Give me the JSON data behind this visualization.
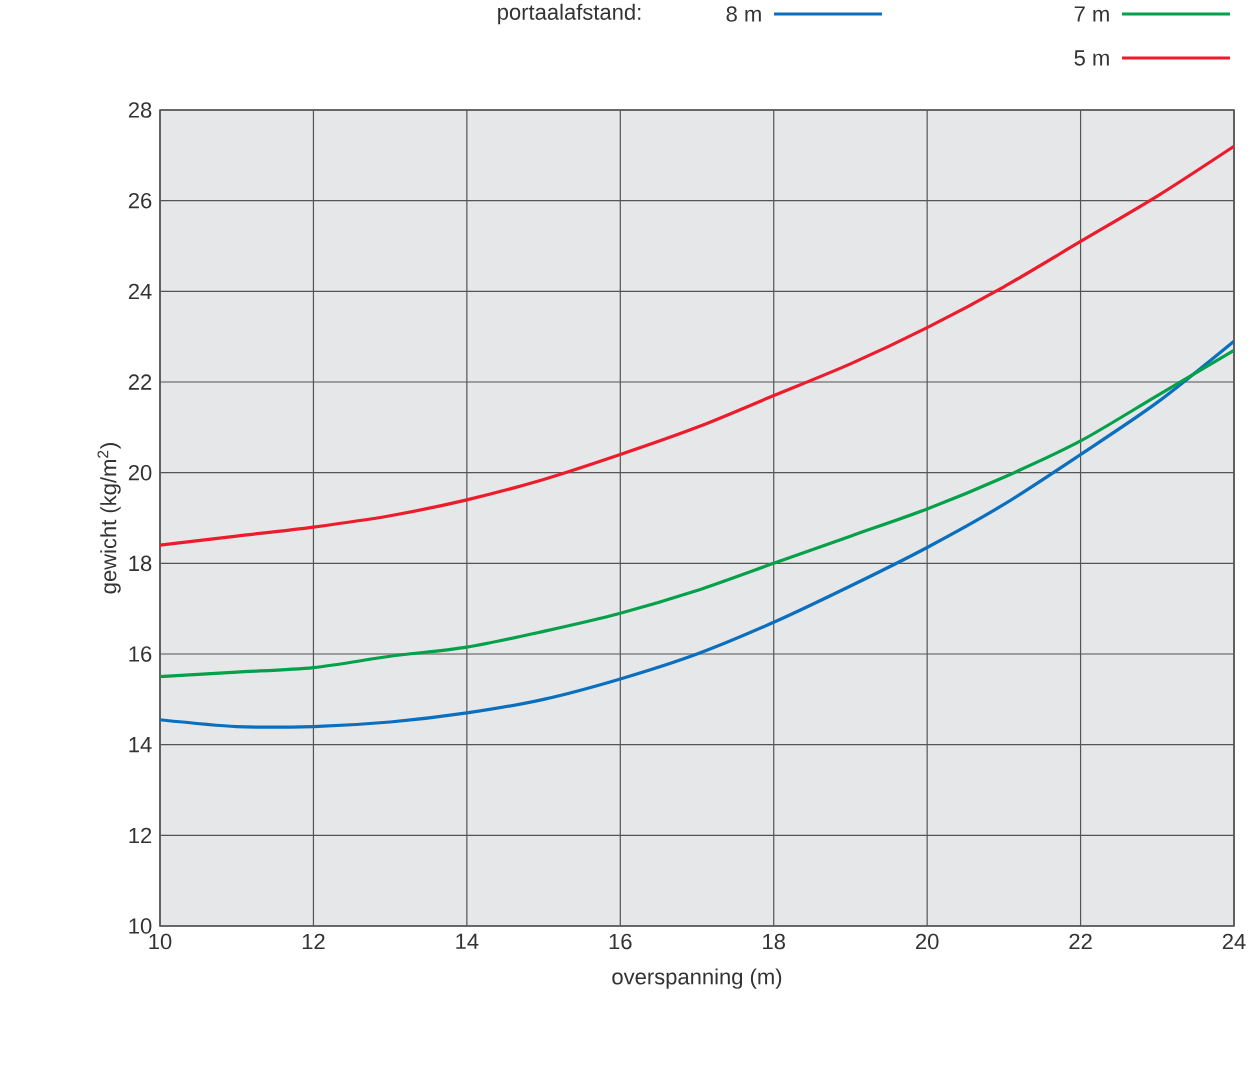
{
  "chart_data": {
    "type": "line",
    "legend_title": "portaalafstand:",
    "xlabel": "overspanning (m)",
    "ylabel": "gewicht (kg/m$^{2}$)",
    "x": [
      10,
      11,
      12,
      13,
      14,
      15,
      16,
      17,
      18,
      19,
      20,
      21,
      22,
      23,
      24
    ],
    "series": [
      {
        "name": "8 m",
        "color": "#0a6fbf",
        "values": [
          14.55,
          14.4,
          14.4,
          14.5,
          14.7,
          15.0,
          15.45,
          16.0,
          16.7,
          17.5,
          18.35,
          19.3,
          20.4,
          21.55,
          22.9
        ]
      },
      {
        "name": "7 m",
        "color": "#05a04a",
        "values": [
          15.5,
          15.6,
          15.7,
          15.95,
          16.15,
          16.5,
          16.9,
          17.4,
          18.0,
          18.6,
          19.2,
          19.9,
          20.7,
          21.7,
          22.7
        ]
      },
      {
        "name": "5 m",
        "color": "#ec1c2c",
        "values": [
          18.4,
          18.6,
          18.8,
          19.05,
          19.4,
          19.85,
          20.4,
          21.0,
          21.7,
          22.4,
          23.2,
          24.1,
          25.1,
          26.1,
          27.2
        ]
      }
    ],
    "xlim": [
      10,
      24
    ],
    "ylim": [
      10,
      28
    ],
    "xticks": [
      10,
      12,
      14,
      16,
      18,
      20,
      22,
      24
    ],
    "yticks": [
      10,
      12,
      14,
      16,
      18,
      20,
      22,
      24,
      26,
      28
    ],
    "grid": true,
    "legend": "top right",
    "line_style": "solid",
    "marker": "none"
  }
}
